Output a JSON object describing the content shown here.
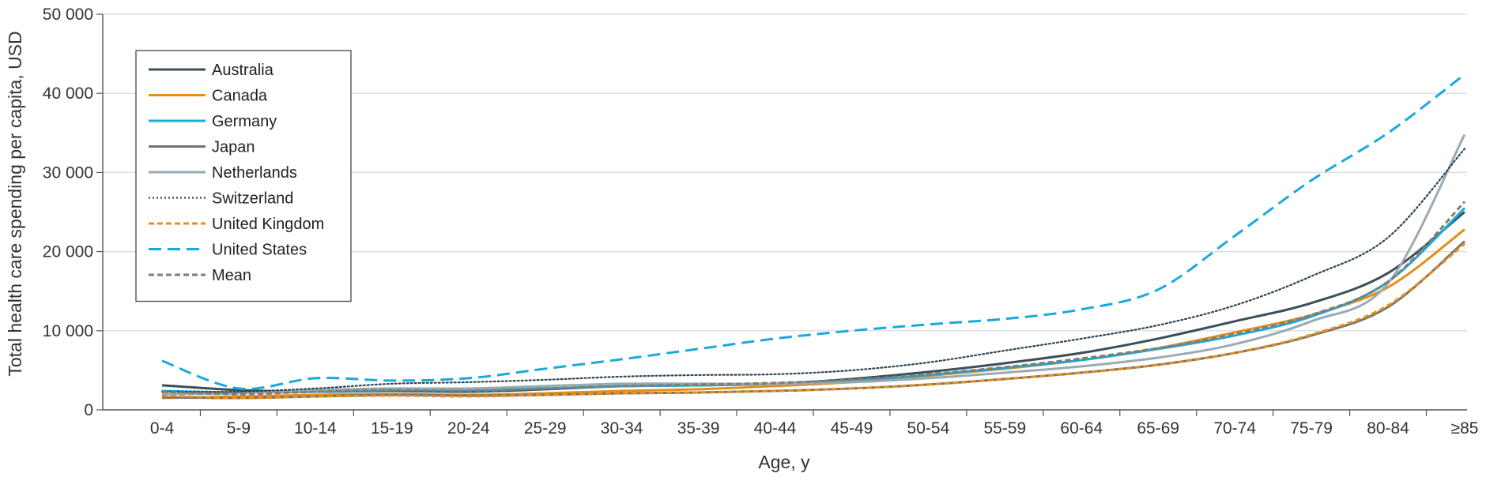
{
  "chart_data": {
    "type": "line",
    "xlabel": "Age, y",
    "ylabel": "Total health care spending per capita, USD",
    "categories": [
      "0-4",
      "5-9",
      "10-14",
      "15-19",
      "20-24",
      "25-29",
      "30-34",
      "35-39",
      "40-44",
      "45-49",
      "50-54",
      "55-59",
      "60-64",
      "65-69",
      "70-74",
      "75-79",
      "80-84",
      "≥85"
    ],
    "y_ticks": [
      0,
      10000,
      20000,
      30000,
      40000,
      50000
    ],
    "y_tick_labels": [
      "0",
      "10 000",
      "20 000",
      "30 000",
      "40 000",
      "50 000"
    ],
    "ylim": [
      0,
      50000
    ],
    "grid": "horizontal",
    "legend_position": "top-left",
    "series": [
      {
        "name": "Australia",
        "color": "#3b4e59",
        "dash": "solid",
        "values": [
          3100,
          2500,
          2300,
          2400,
          2300,
          2600,
          3000,
          3100,
          3300,
          3900,
          4800,
          5900,
          7200,
          9000,
          11200,
          13500,
          17300,
          25000
        ]
      },
      {
        "name": "Canada",
        "color": "#e58e1a",
        "dash": "solid",
        "values": [
          1500,
          1700,
          1900,
          2000,
          1900,
          2100,
          2400,
          2600,
          3000,
          3500,
          4300,
          5200,
          6300,
          7800,
          9800,
          12000,
          15500,
          22800
        ]
      },
      {
        "name": "Germany",
        "color": "#1aa9dc",
        "dash": "solid",
        "values": [
          2400,
          2200,
          2300,
          2500,
          2500,
          2700,
          3000,
          3100,
          3300,
          3700,
          4400,
          5300,
          6300,
          7700,
          9400,
          11800,
          16200,
          25500
        ]
      },
      {
        "name": "Japan",
        "color": "#77736f",
        "dash": "solid",
        "values": [
          1600,
          1500,
          1700,
          1900,
          1800,
          1900,
          2100,
          2200,
          2400,
          2700,
          3200,
          3900,
          4700,
          5700,
          7200,
          9400,
          13000,
          21300
        ]
      },
      {
        "name": "Netherlands",
        "color": "#9aaab3",
        "dash": "solid",
        "values": [
          2000,
          2100,
          2500,
          2700,
          2700,
          3000,
          3300,
          3300,
          3300,
          3500,
          4000,
          4700,
          5500,
          6600,
          8300,
          11200,
          16000,
          34800
        ]
      },
      {
        "name": "Switzerland",
        "color": "#2f4554",
        "dash": "dotted",
        "values": [
          2300,
          2300,
          2700,
          3300,
          3500,
          3800,
          4200,
          4400,
          4500,
          5000,
          6000,
          7500,
          9000,
          10700,
          13200,
          16900,
          21800,
          33000
        ]
      },
      {
        "name": "United Kingdom",
        "color": "#e58e1a",
        "dash": "short",
        "values": [
          1800,
          1500,
          1700,
          1800,
          1700,
          1900,
          2100,
          2200,
          2400,
          2700,
          3200,
          3900,
          4700,
          5700,
          7200,
          9500,
          13200,
          21000
        ]
      },
      {
        "name": "United States",
        "color": "#1aa9dc",
        "dash": "long",
        "values": [
          6200,
          2700,
          4000,
          3700,
          4000,
          5200,
          6400,
          7700,
          9000,
          10000,
          10800,
          11500,
          12700,
          15200,
          22000,
          29000,
          35000,
          42400
        ]
      },
      {
        "name": "Mean",
        "color": "#8a7a6a",
        "dash": "short",
        "values": [
          2300,
          2000,
          2300,
          2500,
          2400,
          2700,
          3000,
          3200,
          3400,
          3800,
          4500,
          5400,
          6500,
          7800,
          9600,
          12000,
          16200,
          26300
        ]
      }
    ]
  }
}
